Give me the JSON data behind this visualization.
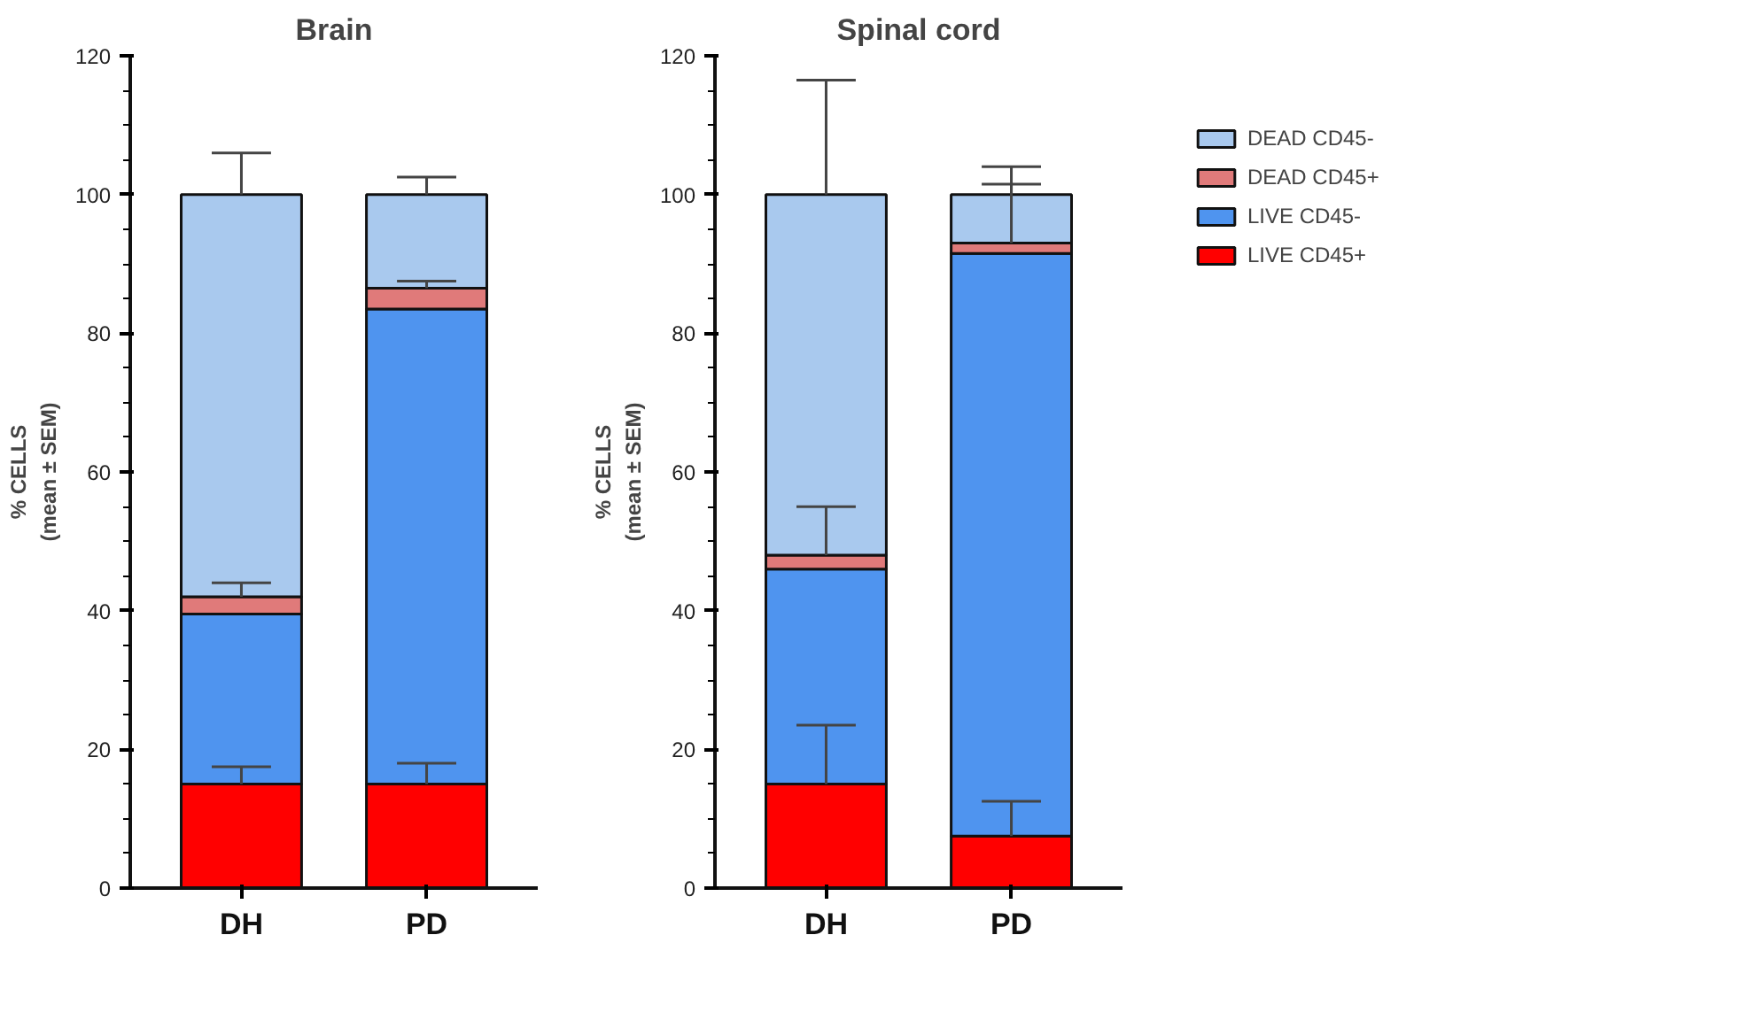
{
  "chart_data": [
    {
      "type": "bar",
      "title": "Brain",
      "ylabel": "% CELLS\n(mean ± SEM)",
      "categories": [
        "DH",
        "PD"
      ],
      "stacked": true,
      "ylim": [
        0,
        120
      ],
      "yticks": [
        0,
        20,
        40,
        60,
        80,
        100,
        120
      ],
      "grid": false,
      "series": [
        {
          "color": "#ff0000",
          "values": [
            15,
            15
          ],
          "errors": [
            [
              15,
              17.5
            ],
            [
              15,
              18
            ]
          ]
        },
        {
          "color": "#4f94ef",
          "values": [
            24.5,
            68.5
          ]
        },
        {
          "color": "#e07a7a",
          "values": [
            2.5,
            3
          ],
          "errors": [
            [
              42,
              44
            ],
            [
              86.5,
              87.5
            ]
          ]
        },
        {
          "color": "#a9c9ee",
          "values": [
            58,
            13.5
          ],
          "errors": [
            [
              100,
              106
            ],
            [
              100,
              102.5
            ]
          ]
        }
      ]
    },
    {
      "type": "bar",
      "title": "Spinal cord",
      "ylabel": "% CELLS\n(mean ± SEM)",
      "categories": [
        "DH",
        "PD"
      ],
      "stacked": true,
      "ylim": [
        0,
        120
      ],
      "yticks": [
        0,
        20,
        40,
        60,
        80,
        100,
        120
      ],
      "grid": false,
      "legend": "right",
      "series": [
        {
          "name": "LIVE CD45+",
          "color": "#ff0000",
          "values": [
            15,
            7.5
          ],
          "errors": [
            [
              15,
              23.5
            ],
            [
              7.5,
              12.5
            ]
          ]
        },
        {
          "name": "LIVE CD45-",
          "color": "#4f94ef",
          "values": [
            31,
            84
          ]
        },
        {
          "name": "DEAD CD45+",
          "color": "#e07a7a",
          "values": [
            2,
            1.5
          ],
          "errors": [
            [
              48,
              55
            ],
            [
              93,
              101.5
            ]
          ]
        },
        {
          "name": "DEAD CD45-",
          "color": "#a9c9ee",
          "values": [
            52,
            7
          ],
          "errors": [
            [
              100,
              116.5
            ],
            [
              100,
              104
            ]
          ]
        }
      ]
    }
  ]
}
